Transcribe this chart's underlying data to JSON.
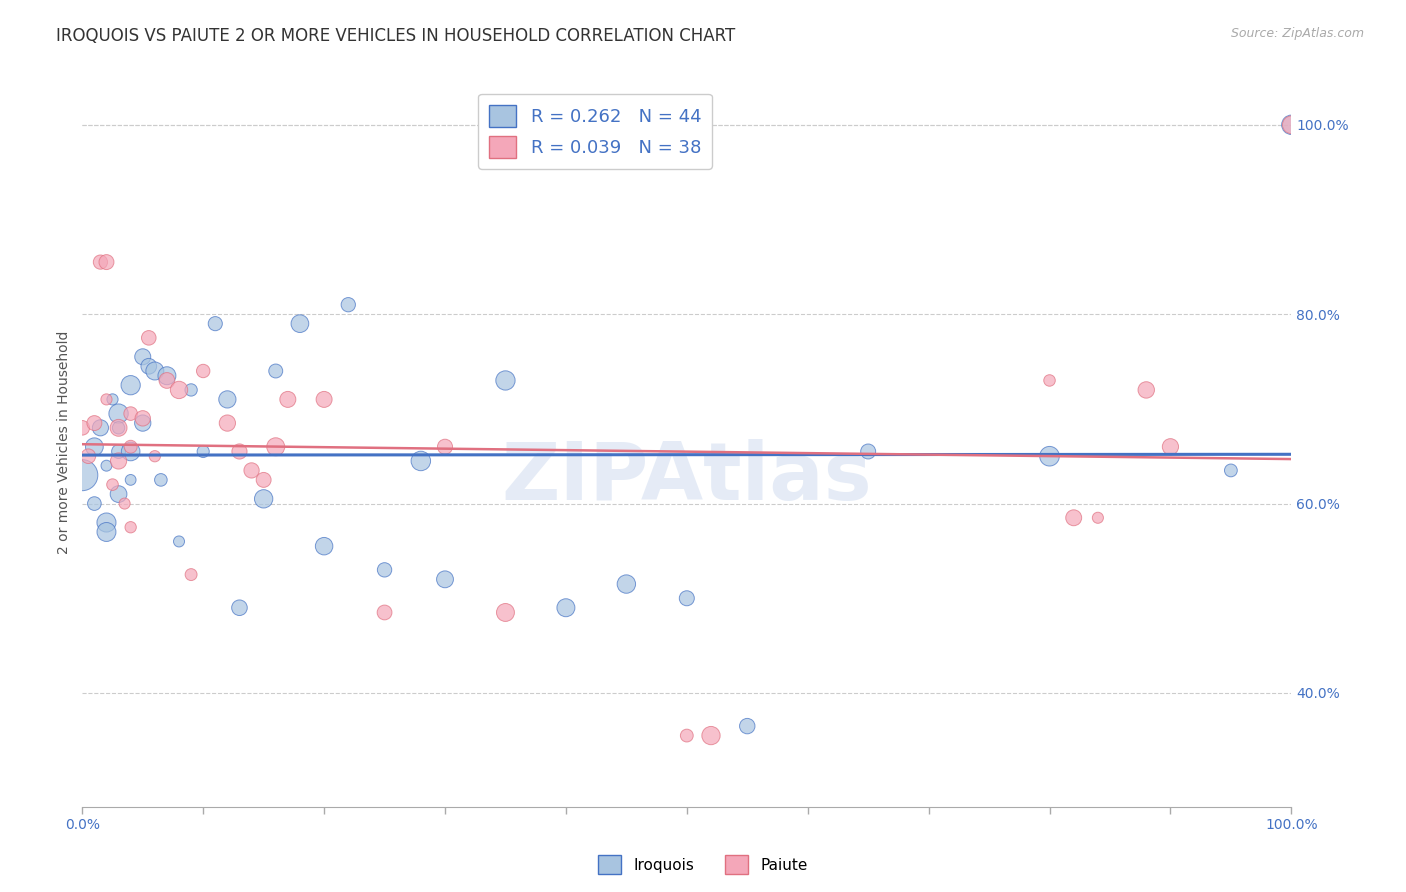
{
  "title": "IROQUOIS VS PAIUTE 2 OR MORE VEHICLES IN HOUSEHOLD CORRELATION CHART",
  "source": "Source: ZipAtlas.com",
  "ylabel": "2 or more Vehicles in Household",
  "iroquois_color": "#a8c4e0",
  "paiute_color": "#f4a7b9",
  "iroquois_line_color": "#4472c4",
  "paiute_line_color": "#e07080",
  "iroquois_R": 0.262,
  "paiute_R": 0.039,
  "iroquois_N": 44,
  "paiute_N": 38,
  "xlim": [
    0.0,
    1.0
  ],
  "ylim": [
    0.28,
    1.05
  ],
  "yticks": [
    0.4,
    0.6,
    0.8,
    1.0
  ],
  "yticklabels": [
    "40.0%",
    "60.0%",
    "80.0%",
    "100.0%"
  ],
  "title_fontsize": 12,
  "axis_label_fontsize": 10,
  "tick_fontsize": 10,
  "legend_fontsize": 13,
  "iroquois_x": [
    0.0,
    0.01,
    0.01,
    0.015,
    0.02,
    0.02,
    0.02,
    0.025,
    0.03,
    0.03,
    0.03,
    0.03,
    0.04,
    0.04,
    0.04,
    0.05,
    0.05,
    0.055,
    0.06,
    0.065,
    0.07,
    0.08,
    0.09,
    0.1,
    0.11,
    0.12,
    0.13,
    0.15,
    0.16,
    0.18,
    0.2,
    0.22,
    0.25,
    0.28,
    0.3,
    0.35,
    0.4,
    0.45,
    0.5,
    0.55,
    0.65,
    0.8,
    0.95,
    1.0
  ],
  "iroquois_y": [
    0.63,
    0.66,
    0.6,
    0.68,
    0.64,
    0.58,
    0.57,
    0.71,
    0.695,
    0.68,
    0.655,
    0.61,
    0.725,
    0.655,
    0.625,
    0.755,
    0.685,
    0.745,
    0.74,
    0.625,
    0.735,
    0.56,
    0.72,
    0.655,
    0.79,
    0.71,
    0.49,
    0.605,
    0.74,
    0.79,
    0.555,
    0.81,
    0.53,
    0.645,
    0.52,
    0.73,
    0.49,
    0.515,
    0.5,
    0.365,
    0.655,
    0.65,
    0.635,
    1.0
  ],
  "paiute_x": [
    0.0,
    0.005,
    0.01,
    0.015,
    0.02,
    0.02,
    0.025,
    0.03,
    0.03,
    0.035,
    0.04,
    0.04,
    0.04,
    0.05,
    0.055,
    0.06,
    0.07,
    0.08,
    0.09,
    0.1,
    0.12,
    0.13,
    0.14,
    0.15,
    0.16,
    0.17,
    0.2,
    0.25,
    0.3,
    0.35,
    0.5,
    0.52,
    0.8,
    0.82,
    0.84,
    0.88,
    0.9,
    1.0
  ],
  "paiute_y": [
    0.68,
    0.65,
    0.685,
    0.855,
    0.855,
    0.71,
    0.62,
    0.68,
    0.645,
    0.6,
    0.695,
    0.66,
    0.575,
    0.69,
    0.775,
    0.65,
    0.73,
    0.72,
    0.525,
    0.74,
    0.685,
    0.655,
    0.635,
    0.625,
    0.66,
    0.71,
    0.71,
    0.485,
    0.66,
    0.485,
    0.355,
    0.355,
    0.73,
    0.585,
    0.585,
    0.72,
    0.66,
    1.0
  ]
}
